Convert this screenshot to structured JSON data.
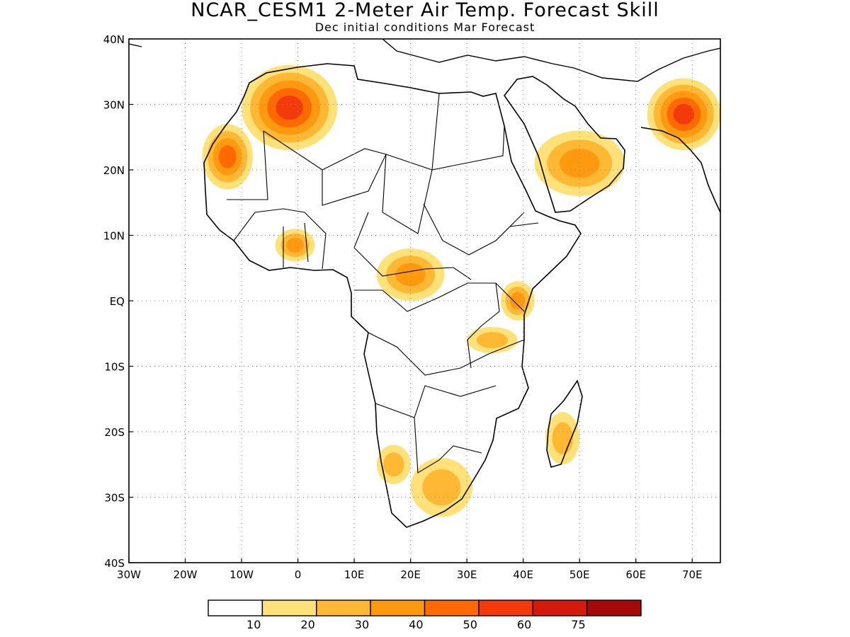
{
  "title": "NCAR_CESM1 2-Meter Air Temp. Forecast Skill",
  "subtitle": "Dec initial conditions  Mar Forecast",
  "map": {
    "lon_range": [
      -30,
      75
    ],
    "lat_range": [
      -40,
      40
    ],
    "lon_ticks": [
      {
        "value": -30,
        "label": "30W"
      },
      {
        "value": -20,
        "label": "20W"
      },
      {
        "value": -10,
        "label": "10W"
      },
      {
        "value": 0,
        "label": "0"
      },
      {
        "value": 10,
        "label": "10E"
      },
      {
        "value": 20,
        "label": "20E"
      },
      {
        "value": 30,
        "label": "30E"
      },
      {
        "value": 40,
        "label": "40E"
      },
      {
        "value": 50,
        "label": "50E"
      },
      {
        "value": 60,
        "label": "60E"
      },
      {
        "value": 70,
        "label": "70E"
      }
    ],
    "lat_ticks": [
      {
        "value": 40,
        "label": "40N"
      },
      {
        "value": 30,
        "label": "30N"
      },
      {
        "value": 20,
        "label": "20N"
      },
      {
        "value": 10,
        "label": "10N"
      },
      {
        "value": 0,
        "label": "EQ"
      },
      {
        "value": -10,
        "label": "10S"
      },
      {
        "value": -20,
        "label": "20S"
      },
      {
        "value": -30,
        "label": "30S"
      },
      {
        "value": -40,
        "label": "40S"
      }
    ],
    "gridlines": "dotted"
  },
  "colorbar": {
    "bins": [
      {
        "color": "#ffffff"
      },
      {
        "color": "#ffe17a"
      },
      {
        "color": "#ffb834"
      },
      {
        "color": "#ff9a10"
      },
      {
        "color": "#ff6a00"
      },
      {
        "color": "#f23a0a"
      },
      {
        "color": "#d41a0a"
      },
      {
        "color": "#a40a0a"
      }
    ],
    "labels": [
      "10",
      "20",
      "30",
      "40",
      "50",
      "60",
      "75"
    ]
  },
  "regions": [
    {
      "name": "NW Africa / Morocco",
      "level": 5,
      "lon": [
        -10,
        7
      ],
      "lat": [
        23,
        36
      ]
    },
    {
      "name": "Western Sahara / Mauritania",
      "level": 4,
      "lon": [
        -17,
        -8
      ],
      "lat": [
        17,
        27
      ]
    },
    {
      "name": "Pakistan / NW India",
      "level": 5,
      "lon": [
        62,
        75
      ],
      "lat": [
        23,
        34
      ]
    },
    {
      "name": "Arabian Peninsula",
      "level": 3,
      "lon": [
        42,
        58
      ],
      "lat": [
        16,
        26
      ]
    },
    {
      "name": "Gulf of Guinea coast",
      "level": 3,
      "lon": [
        -4,
        3
      ],
      "lat": [
        6,
        11
      ]
    },
    {
      "name": "Central African Republic",
      "level": 3,
      "lon": [
        14,
        26
      ],
      "lat": [
        0,
        8
      ]
    },
    {
      "name": "Kenya",
      "level": 3,
      "lon": [
        36,
        42
      ],
      "lat": [
        -3,
        3
      ]
    },
    {
      "name": "Tanzania",
      "level": 2,
      "lon": [
        30,
        39
      ],
      "lat": [
        -8,
        -4
      ]
    },
    {
      "name": "Madagascar",
      "level": 2,
      "lon": [
        44,
        50
      ],
      "lat": [
        -25,
        -17
      ]
    },
    {
      "name": "South Africa",
      "level": 2,
      "lon": [
        20,
        31
      ],
      "lat": [
        -33,
        -24
      ]
    },
    {
      "name": "Namibia coast",
      "level": 2,
      "lon": [
        14,
        20
      ],
      "lat": [
        -28,
        -22
      ]
    }
  ]
}
